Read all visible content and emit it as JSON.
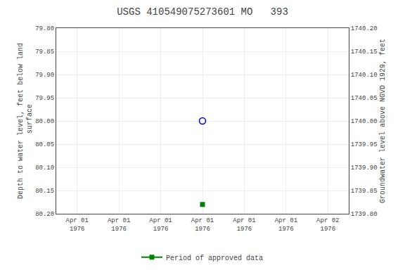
{
  "chart_data": {
    "type": "scatter",
    "title": "USGS 410549075273601 MO   393",
    "y_label": "Depth to water level, feet below land\n surface",
    "y2_label": "Groundwater level above NGVD 1929, feet",
    "categories": [
      "Apr 01\n1976",
      "Apr 01\n1976",
      "Apr 01\n1976",
      "Apr 01\n1976",
      "Apr 01\n1976",
      "Apr 01\n1976",
      "Apr 02\n1976"
    ],
    "series": [
      {
        "values": [
          null,
          null,
          null,
          80.0,
          null,
          null,
          null
        ],
        "color": "#0000cc",
        "marker": "open_circle"
      },
      {
        "name": "Period of approved data",
        "values": [
          null,
          null,
          null,
          80.18,
          null,
          null,
          null
        ],
        "color": "#008000",
        "marker": "square",
        "line_style": "solid"
      }
    ],
    "ylim": [
      80.2,
      79.8
    ],
    "yticks": [
      {
        "value": 79.8,
        "label": "79.80"
      },
      {
        "value": 79.85,
        "label": "79.85"
      },
      {
        "value": 79.9,
        "label": "79.90"
      },
      {
        "value": 79.95,
        "label": "79.95"
      },
      {
        "value": 80.0,
        "label": "80.00"
      },
      {
        "value": 80.05,
        "label": "80.05"
      },
      {
        "value": 80.1,
        "label": "80.10"
      },
      {
        "value": 80.15,
        "label": "80.15"
      },
      {
        "value": 80.2,
        "label": "80.20"
      }
    ],
    "y2lim": [
      1739.8,
      1740.2
    ],
    "y2ticks": [
      {
        "value": 1740.2,
        "label": "1740.20"
      },
      {
        "value": 1740.15,
        "label": "1740.15"
      },
      {
        "value": 1740.1,
        "label": "1740.10"
      },
      {
        "value": 1740.05,
        "label": "1740.05"
      },
      {
        "value": 1740.0,
        "label": "1740.00"
      },
      {
        "value": 1739.95,
        "label": "1739.95"
      },
      {
        "value": 1739.9,
        "label": "1739.90"
      },
      {
        "value": 1739.85,
        "label": "1739.85"
      },
      {
        "value": 1739.8,
        "label": "1739.80"
      }
    ],
    "grid": true,
    "legend": "bottom"
  }
}
